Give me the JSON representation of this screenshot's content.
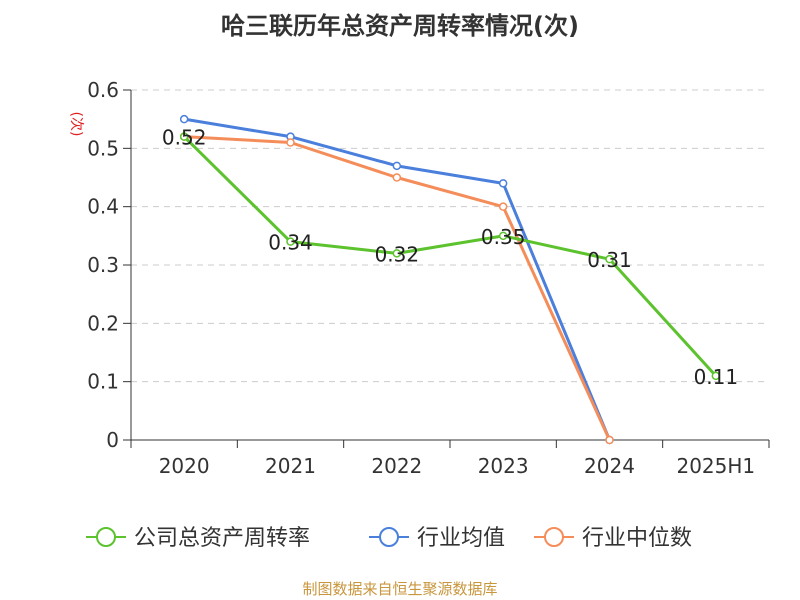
{
  "chart_data": {
    "type": "line",
    "title": "哈三联历年总资产周转率情况(次)",
    "ylabel": "(次)",
    "xlabel": "",
    "categories": [
      "2020",
      "2021",
      "2022",
      "2023",
      "2024",
      "2025H1"
    ],
    "ylim": [
      0,
      0.6
    ],
    "yticks": [
      "0",
      "0.1",
      "0.2",
      "0.3",
      "0.4",
      "0.5",
      "0.6"
    ],
    "grid": true,
    "legend_position": "bottom",
    "series": [
      {
        "name": "公司总资产周转率",
        "color": "#5cc22e",
        "values": [
          0.52,
          0.34,
          0.32,
          0.35,
          0.31,
          0.11
        ],
        "labels": [
          "0.52",
          "0.34",
          "0.32",
          "0.35",
          "0.31",
          "0.11"
        ]
      },
      {
        "name": "行业均值",
        "color": "#4a7fdc",
        "values": [
          0.55,
          0.52,
          0.47,
          0.44,
          0.0,
          null
        ],
        "labels": []
      },
      {
        "name": "行业中位数",
        "color": "#f48d5a",
        "values": [
          0.52,
          0.51,
          0.45,
          0.4,
          0.0,
          null
        ],
        "labels": []
      }
    ],
    "source": "制图数据来自恒生聚源数据库"
  }
}
